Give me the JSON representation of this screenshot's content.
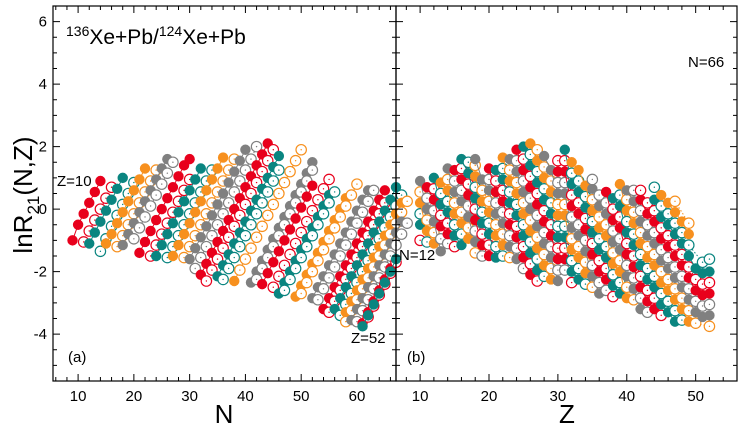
{
  "chart_data": [
    {
      "type": "scatter",
      "panel": "(a)",
      "title": "136Xe+Pb/124Xe+Pb",
      "title_parts": {
        "a1": "136",
        "b1": "Xe+Pb/",
        "a2": "124",
        "b2": "Xe+Pb"
      },
      "xlabel": "N",
      "ylabel": "lnR21(N,Z)",
      "ylabel_parts": {
        "main": "lnR",
        "sub": "21",
        "rest": "(N,Z)"
      },
      "xlim": [
        5.5,
        67
      ],
      "ylim": [
        -5.5,
        6.5
      ],
      "xticks": [
        10,
        20,
        30,
        40,
        50,
        60
      ],
      "yticks": [
        -4,
        -2,
        0,
        2,
        4,
        6
      ],
      "annotations": [
        "Z=10",
        "Z=52"
      ],
      "grouping": "isotopic chains by Z (lines connect same Z)",
      "legend": "none"
    },
    {
      "type": "scatter",
      "panel": "(b)",
      "xlabel": "Z",
      "xlim": [
        6.5,
        56
      ],
      "ylim": [
        -5.5,
        6.5
      ],
      "xticks": [
        10,
        20,
        30,
        40,
        50
      ],
      "annotations": [
        "N=12",
        "N=66"
      ],
      "grouping": "isotonic chains by N (lines connect same N)",
      "legend": "none"
    }
  ],
  "series_colors": [
    "#e8001c",
    "#0a8580",
    "#f7901e",
    "#808080"
  ],
  "marker_styles": [
    "filled",
    "open-dotted"
  ],
  "chains": {
    "Z_min": 10,
    "Z_max": 52,
    "rows": [
      {
        "Z": 10,
        "N0": 9,
        "v": [
          -1.0,
          -0.5,
          -0.15,
          0.2,
          0.55,
          0.9
        ]
      },
      {
        "Z": 11,
        "N0": 11,
        "v": [
          -1.05,
          -0.7,
          -0.35,
          0.0,
          0.35,
          0.7
        ]
      },
      {
        "Z": 12,
        "N0": 12,
        "v": [
          -1.1,
          -0.75,
          -0.4,
          -0.05,
          0.3,
          0.65,
          1.0
        ]
      },
      {
        "Z": 13,
        "N0": 14,
        "v": [
          -1.35,
          -0.95,
          -0.55,
          -0.2,
          0.15,
          0.5,
          0.85
        ]
      },
      {
        "Z": 14,
        "N0": 15,
        "v": [
          -1.1,
          -0.8,
          -0.45,
          -0.1,
          0.25,
          0.6,
          0.95,
          1.3
        ]
      },
      {
        "Z": 15,
        "N0": 17,
        "v": [
          -1.2,
          -0.85,
          -0.5,
          -0.15,
          0.2,
          0.55,
          0.9,
          1.25
        ]
      },
      {
        "Z": 16,
        "N0": 18,
        "v": [
          -1.15,
          -0.8,
          -0.45,
          -0.1,
          0.25,
          0.6,
          0.95,
          1.3,
          1.6
        ]
      },
      {
        "Z": 17,
        "N0": 20,
        "v": [
          -0.95,
          -0.6,
          -0.25,
          0.1,
          0.45,
          0.8,
          1.15,
          1.5
        ]
      },
      {
        "Z": 18,
        "N0": 21,
        "v": [
          -1.4,
          -1.05,
          -0.7,
          -0.35,
          0.0,
          0.35,
          0.7,
          1.05,
          1.4,
          1.6
        ]
      },
      {
        "Z": 19,
        "N0": 23,
        "v": [
          -1.5,
          -1.15,
          -0.8,
          -0.45,
          -0.1,
          0.25,
          0.6,
          0.95
        ]
      },
      {
        "Z": 20,
        "N0": 24,
        "v": [
          -1.5,
          -1.15,
          -0.8,
          -0.45,
          -0.1,
          0.25,
          0.6,
          0.95,
          1.3
        ]
      },
      {
        "Z": 21,
        "N0": 26,
        "v": [
          -1.55,
          -1.2,
          -0.85,
          -0.5,
          -0.15,
          0.2,
          0.55,
          0.9,
          1.25
        ]
      },
      {
        "Z": 22,
        "N0": 27,
        "v": [
          -1.5,
          -1.15,
          -0.8,
          -0.45,
          -0.1,
          0.25,
          0.6,
          0.95,
          1.3,
          1.65
        ]
      },
      {
        "Z": 23,
        "N0": 29,
        "v": [
          -1.55,
          -1.2,
          -0.85,
          -0.5,
          -0.15,
          0.2,
          0.55,
          0.9,
          1.25,
          1.6
        ]
      },
      {
        "Z": 24,
        "N0": 30,
        "v": [
          -1.6,
          -1.25,
          -0.9,
          -0.55,
          -0.2,
          0.15,
          0.5,
          0.85,
          1.2,
          1.55,
          1.9
        ]
      },
      {
        "Z": 25,
        "N0": 31,
        "v": [
          -1.9,
          -1.55,
          -1.2,
          -0.85,
          -0.5,
          -0.15,
          0.2,
          0.55,
          0.9,
          1.25,
          1.6,
          2.0
        ]
      },
      {
        "Z": 26,
        "N0": 32,
        "v": [
          -2.1,
          -1.75,
          -1.4,
          -1.05,
          -0.7,
          -0.35,
          0.0,
          0.35,
          0.7,
          1.05,
          1.4,
          1.75,
          2.1
        ]
      },
      {
        "Z": 27,
        "N0": 33,
        "v": [
          -2.3,
          -1.95,
          -1.6,
          -1.25,
          -0.9,
          -0.55,
          -0.2,
          0.15,
          0.5,
          0.85,
          1.2,
          1.55,
          1.9
        ]
      },
      {
        "Z": 28,
        "N0": 35,
        "v": [
          -2.15,
          -1.8,
          -1.45,
          -1.1,
          -0.75,
          -0.4,
          -0.05,
          0.3,
          0.65,
          1.0,
          1.35,
          1.7
        ]
      },
      {
        "Z": 29,
        "N0": 36,
        "v": [
          -2.25,
          -1.9,
          -1.55,
          -1.2,
          -0.85,
          -0.5,
          -0.15,
          0.2,
          0.55,
          0.9,
          1.25
        ]
      },
      {
        "Z": 30,
        "N0": 38,
        "v": [
          -2.3,
          -1.95,
          -1.6,
          -1.25,
          -0.9,
          -0.55,
          -0.2,
          0.15,
          0.5,
          0.85,
          1.2,
          1.55
        ]
      },
      {
        "Z": 31,
        "N0": 39,
        "v": [
          -1.95,
          -1.6,
          -1.25,
          -0.9,
          -0.55,
          -0.2,
          0.15,
          0.5,
          0.85,
          1.2,
          1.55,
          1.9
        ]
      },
      {
        "Z": 32,
        "N0": 41,
        "v": [
          -2.35,
          -2.0,
          -1.65,
          -1.3,
          -0.95,
          -0.6,
          -0.25,
          0.1,
          0.45,
          0.8,
          1.15,
          1.5
        ]
      },
      {
        "Z": 33,
        "N0": 42,
        "v": [
          -2.25,
          -1.9,
          -1.55,
          -1.2,
          -0.85,
          -0.5,
          -0.15,
          0.2,
          0.55,
          0.9,
          1.25
        ]
      },
      {
        "Z": 34,
        "N0": 43,
        "v": [
          -2.4,
          -2.05,
          -1.7,
          -1.35,
          -1.0,
          -0.65,
          -0.3,
          0.05,
          0.4,
          0.75
        ]
      },
      {
        "Z": 35,
        "N0": 45,
        "v": [
          -2.5,
          -2.15,
          -1.8,
          -1.45,
          -1.1,
          -0.75,
          -0.4,
          -0.05,
          0.3,
          0.65,
          0.95
        ]
      },
      {
        "Z": 36,
        "N0": 46,
        "v": [
          -2.7,
          -2.35,
          -2.0,
          -1.65,
          -1.3,
          -0.95,
          -0.6,
          -0.25,
          0.1,
          0.45
        ]
      },
      {
        "Z": 37,
        "N0": 47,
        "v": [
          -2.6,
          -2.25,
          -1.9,
          -1.55,
          -1.2,
          -0.85,
          -0.5,
          -0.15,
          0.2,
          0.55
        ]
      },
      {
        "Z": 38,
        "N0": 49,
        "v": [
          -2.8,
          -2.45,
          -2.1,
          -1.75,
          -1.4,
          -1.05,
          -0.7,
          -0.35,
          0.0,
          0.35
        ]
      },
      {
        "Z": 39,
        "N0": 50,
        "v": [
          -2.7,
          -2.35,
          -2.0,
          -1.65,
          -1.3,
          -0.95,
          -0.6,
          -0.25,
          0.1,
          0.45,
          0.8
        ]
      },
      {
        "Z": 40,
        "N0": 52,
        "v": [
          -2.85,
          -2.5,
          -2.15,
          -1.8,
          -1.45,
          -1.1,
          -0.75,
          -0.4,
          -0.05,
          0.3,
          0.6
        ]
      },
      {
        "Z": 41,
        "N0": 53,
        "v": [
          -2.9,
          -2.55,
          -2.2,
          -1.85,
          -1.5,
          -1.15,
          -0.8,
          -0.45,
          -0.1,
          0.25,
          0.6
        ]
      },
      {
        "Z": 42,
        "N0": 54,
        "v": [
          -3.2,
          -2.85,
          -2.5,
          -2.15,
          -1.8,
          -1.45,
          -1.1,
          -0.75,
          -0.4,
          -0.05,
          0.3,
          0.6
        ]
      },
      {
        "Z": 43,
        "N0": 55,
        "v": [
          -3.3,
          -2.95,
          -2.6,
          -2.25,
          -1.9,
          -1.55,
          -1.2,
          -0.85,
          -0.5,
          -0.15,
          0.2
        ]
      },
      {
        "Z": 44,
        "N0": 56,
        "v": [
          -3.2,
          -2.85,
          -2.5,
          -2.15,
          -1.8,
          -1.45,
          -1.1,
          -0.75,
          -0.4,
          -0.05,
          0.3,
          0.7
        ]
      },
      {
        "Z": 45,
        "N0": 57,
        "v": [
          -3.4,
          -3.05,
          -2.7,
          -2.35,
          -2.0,
          -1.65,
          -1.3,
          -0.95,
          -0.6,
          -0.25,
          0.1,
          0.45
        ]
      },
      {
        "Z": 46,
        "N0": 58,
        "v": [
          -3.3,
          -2.95,
          -2.6,
          -2.25,
          -1.9,
          -1.55,
          -1.2,
          -0.85,
          -0.5,
          -0.15,
          0.2
        ]
      },
      {
        "Z": 47,
        "N0": 58,
        "v": [
          -3.6,
          -3.25,
          -2.9,
          -2.55,
          -2.2,
          -1.85,
          -1.5,
          -1.15,
          -0.8,
          -0.45,
          -0.1,
          0.25
        ]
      },
      {
        "Z": 48,
        "N0": 59,
        "v": [
          -3.55,
          -3.2,
          -2.85,
          -2.5,
          -2.15,
          -1.8,
          -1.45,
          -1.1,
          -0.75,
          -0.4
        ]
      },
      {
        "Z": 49,
        "N0": 60,
        "v": [
          -3.6,
          -3.25,
          -2.9,
          -2.55,
          -2.2,
          -1.85,
          -1.5,
          -1.15,
          -0.8,
          -0.45
        ]
      },
      {
        "Z": 50,
        "N0": 61,
        "v": [
          -3.65,
          -3.3,
          -2.95,
          -2.6,
          -2.25,
          -1.9
        ]
      },
      {
        "Z": 51,
        "N0": 62,
        "v": [
          -3.45,
          -3.1,
          -2.75,
          -2.4,
          -2.05,
          -1.7
        ]
      },
      {
        "Z": 52,
        "N0": 61,
        "v": [
          -3.75,
          -3.4,
          -3.05,
          -2.7,
          -2.35,
          -2.0,
          -1.6
        ]
      }
    ]
  }
}
